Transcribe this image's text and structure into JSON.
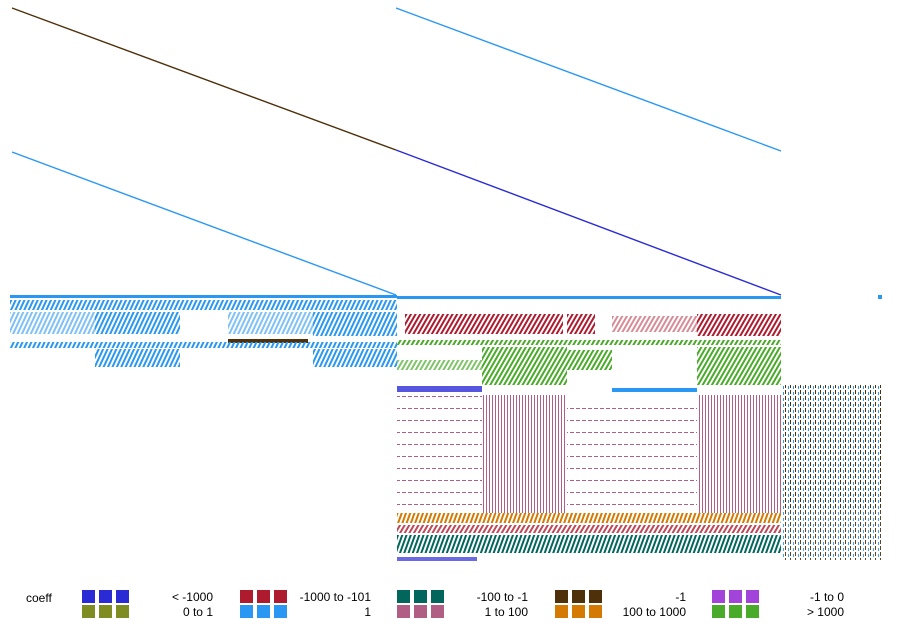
{
  "legend": {
    "title": "coeff",
    "entries": [
      {
        "label": "< -1000",
        "color": "#2b2bd6"
      },
      {
        "label": "0 to 1",
        "color": "#7f8c22"
      },
      {
        "label": "-1000 to -101",
        "color": "#ae1a2e"
      },
      {
        "label": "1",
        "color": "#2a98f2"
      },
      {
        "label": "-100 to -1",
        "color": "#02665c"
      },
      {
        "label": "1 to 100",
        "color": "#b05e84"
      },
      {
        "label": "-1",
        "color": "#4e300a"
      },
      {
        "label": "100 to 1000",
        "color": "#d47a02"
      },
      {
        "label": "-1 to 0",
        "color": "#a244da"
      },
      {
        "label": "> 1000",
        "color": "#4aaa2a"
      }
    ]
  }
}
